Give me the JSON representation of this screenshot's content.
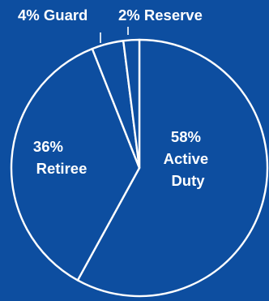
{
  "chart_data": {
    "type": "pie",
    "title": "",
    "slices": [
      {
        "label": "Active Duty",
        "percent_text": "58%",
        "value": 58
      },
      {
        "label": "Retiree",
        "percent_text": "36%",
        "value": 36
      },
      {
        "label": "Guard",
        "percent_text": "4%",
        "value": 4
      },
      {
        "label": "Reserve",
        "percent_text": "2%",
        "value": 2
      }
    ],
    "labels": {
      "active_duty": [
        "58%",
        "Active",
        "Duty"
      ],
      "retiree": [
        "36%",
        "Retiree"
      ],
      "guard": "4% Guard",
      "reserve": "2% Reserve"
    }
  },
  "colors": {
    "background": "#0d4ea0",
    "slice_fill": "#0d4ea0",
    "stroke": "#ffffff",
    "text": "#ffffff"
  }
}
